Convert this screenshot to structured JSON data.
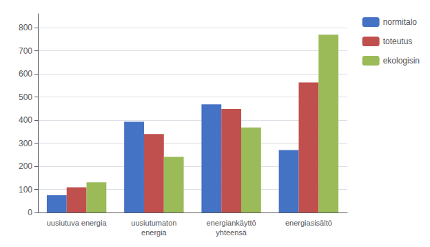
{
  "chart_data": {
    "type": "bar",
    "categories": [
      "uusiutuva energia",
      "uusiutumaton\nenergia",
      "energiankäyttö\nyhteensä",
      "energiasisältö"
    ],
    "series": [
      {
        "name": "normitalo",
        "color": "#4472C4",
        "values": [
          75,
          393,
          468,
          270
        ]
      },
      {
        "name": "toteutus",
        "color": "#C0504D",
        "values": [
          109,
          340,
          448,
          563
        ]
      },
      {
        "name": "ekologisin",
        "color": "#9BBB59",
        "values": [
          131,
          241,
          368,
          770
        ]
      }
    ],
    "ylim": [
      0,
      860
    ],
    "yticks": [
      0,
      100,
      200,
      300,
      400,
      500,
      600,
      700,
      800
    ],
    "grid": true,
    "legend": "right"
  }
}
